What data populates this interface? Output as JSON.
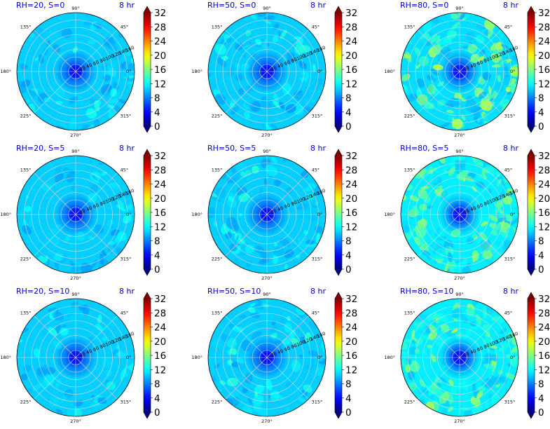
{
  "figure": {
    "colors": {
      "background": "#ffffff",
      "grid": "#d9d9d9",
      "title": "#0000cc",
      "field_base": "#0aa0f5"
    }
  },
  "chart_data": [
    {
      "type": "heatmap",
      "projection": "polar",
      "title": "RH=20, S=0",
      "time_label": "8 hr",
      "rh": 20,
      "s": 0,
      "radial_ticks": [
        "20",
        "40",
        "60",
        "80",
        "100",
        "120",
        "140",
        "160"
      ],
      "angular_ticks": [
        "0°",
        "45°",
        "90°",
        "135°",
        "180°",
        "225°",
        "270°",
        "315°"
      ],
      "colorbar": {
        "ticks": [
          "0",
          "4",
          "8",
          "12",
          "16",
          "20",
          "24",
          "28",
          "32"
        ],
        "range": [
          0,
          32
        ],
        "colormap": "jet"
      },
      "field": {
        "center_value": 3,
        "background_value": 10.5,
        "patch_max": 13
      }
    },
    {
      "type": "heatmap",
      "projection": "polar",
      "title": "RH=50, S=0",
      "time_label": "8 hr",
      "rh": 50,
      "s": 0,
      "radial_ticks": [
        "20",
        "40",
        "60",
        "80",
        "100",
        "120",
        "140",
        "160"
      ],
      "angular_ticks": [
        "0°",
        "45°",
        "90°",
        "135°",
        "180°",
        "225°",
        "270°",
        "315°"
      ],
      "colorbar": {
        "ticks": [
          "0",
          "4",
          "8",
          "12",
          "16",
          "20",
          "24",
          "28",
          "32"
        ],
        "range": [
          0,
          32
        ],
        "colormap": "jet"
      },
      "field": {
        "center_value": 3,
        "background_value": 10.5,
        "patch_max": 13.5
      }
    },
    {
      "type": "heatmap",
      "projection": "polar",
      "title": "RH=80, S=0",
      "time_label": "8 hr",
      "rh": 80,
      "s": 0,
      "radial_ticks": [
        "20",
        "40",
        "60",
        "80",
        "100",
        "120",
        "140",
        "160"
      ],
      "angular_ticks": [
        "0°",
        "45°",
        "90°",
        "135°",
        "180°",
        "225°",
        "270°",
        "315°"
      ],
      "colorbar": {
        "ticks": [
          "0",
          "4",
          "8",
          "12",
          "16",
          "20",
          "24",
          "28",
          "32"
        ],
        "range": [
          0,
          32
        ],
        "colormap": "jet"
      },
      "field": {
        "center_value": 3,
        "background_value": 11,
        "patch_max": 18
      }
    },
    {
      "type": "heatmap",
      "projection": "polar",
      "title": "RH=20, S=5",
      "time_label": "8 hr",
      "rh": 20,
      "s": 5,
      "radial_ticks": [
        "20",
        "40",
        "60",
        "80",
        "100",
        "120",
        "140",
        "160"
      ],
      "angular_ticks": [
        "0°",
        "45°",
        "90°",
        "135°",
        "180°",
        "225°",
        "270°",
        "315°"
      ],
      "colorbar": {
        "ticks": [
          "0",
          "4",
          "8",
          "12",
          "16",
          "20",
          "24",
          "28",
          "32"
        ],
        "range": [
          0,
          32
        ],
        "colormap": "jet"
      },
      "field": {
        "center_value": 3,
        "background_value": 10.5,
        "patch_max": 13
      }
    },
    {
      "type": "heatmap",
      "projection": "polar",
      "title": "RH=50, S=5",
      "time_label": "8 hr",
      "rh": 50,
      "s": 5,
      "radial_ticks": [
        "20",
        "40",
        "60",
        "80",
        "100",
        "120",
        "140",
        "160"
      ],
      "angular_ticks": [
        "0°",
        "45°",
        "90°",
        "135°",
        "180°",
        "225°",
        "270°",
        "315°"
      ],
      "colorbar": {
        "ticks": [
          "0",
          "4",
          "8",
          "12",
          "16",
          "20",
          "24",
          "28",
          "32"
        ],
        "range": [
          0,
          32
        ],
        "colormap": "jet"
      },
      "field": {
        "center_value": 3,
        "background_value": 10.5,
        "patch_max": 13.5
      }
    },
    {
      "type": "heatmap",
      "projection": "polar",
      "title": "RH=80, S=5",
      "time_label": "8 hr",
      "rh": 80,
      "s": 5,
      "radial_ticks": [
        "20",
        "40",
        "60",
        "80",
        "100",
        "120",
        "140",
        "160"
      ],
      "angular_ticks": [
        "0°",
        "45°",
        "90°",
        "135°",
        "180°",
        "225°",
        "270°",
        "315°"
      ],
      "colorbar": {
        "ticks": [
          "0",
          "4",
          "8",
          "12",
          "16",
          "20",
          "24",
          "28",
          "32"
        ],
        "range": [
          0,
          32
        ],
        "colormap": "jet"
      },
      "field": {
        "center_value": 3,
        "background_value": 11.5,
        "patch_max": 18
      }
    },
    {
      "type": "heatmap",
      "projection": "polar",
      "title": "RH=20, S=10",
      "time_label": "8 hr",
      "rh": 20,
      "s": 10,
      "radial_ticks": [
        "20",
        "40",
        "60",
        "80",
        "100",
        "120",
        "140",
        "160"
      ],
      "angular_ticks": [
        "0°",
        "45°",
        "90°",
        "135°",
        "180°",
        "225°",
        "270°",
        "315°"
      ],
      "colorbar": {
        "ticks": [
          "0",
          "4",
          "8",
          "12",
          "16",
          "20",
          "24",
          "28",
          "32"
        ],
        "range": [
          0,
          32
        ],
        "colormap": "jet"
      },
      "field": {
        "center_value": 3,
        "background_value": 10.5,
        "patch_max": 13
      }
    },
    {
      "type": "heatmap",
      "projection": "polar",
      "title": "RH=50, S=10",
      "time_label": "8 hr",
      "rh": 50,
      "s": 10,
      "radial_ticks": [
        "20",
        "40",
        "60",
        "80",
        "100",
        "120",
        "140",
        "160"
      ],
      "angular_ticks": [
        "0°",
        "45°",
        "90°",
        "135°",
        "180°",
        "225°",
        "270°",
        "315°"
      ],
      "colorbar": {
        "ticks": [
          "0",
          "4",
          "8",
          "12",
          "16",
          "20",
          "24",
          "28",
          "32"
        ],
        "range": [
          0,
          32
        ],
        "colormap": "jet"
      },
      "field": {
        "center_value": 3,
        "background_value": 10.5,
        "patch_max": 13.5
      }
    },
    {
      "type": "heatmap",
      "projection": "polar",
      "title": "RH=80, S=10",
      "time_label": "8 hr",
      "rh": 80,
      "s": 10,
      "radial_ticks": [
        "20",
        "40",
        "60",
        "80",
        "100",
        "120",
        "140",
        "160"
      ],
      "angular_ticks": [
        "0°",
        "45°",
        "90°",
        "135°",
        "180°",
        "225°",
        "270°",
        "315°"
      ],
      "colorbar": {
        "ticks": [
          "0",
          "4",
          "8",
          "12",
          "16",
          "20",
          "24",
          "28",
          "32"
        ],
        "range": [
          0,
          32
        ],
        "colormap": "jet"
      },
      "field": {
        "center_value": 3,
        "background_value": 11.5,
        "patch_max": 17.5
      }
    }
  ]
}
